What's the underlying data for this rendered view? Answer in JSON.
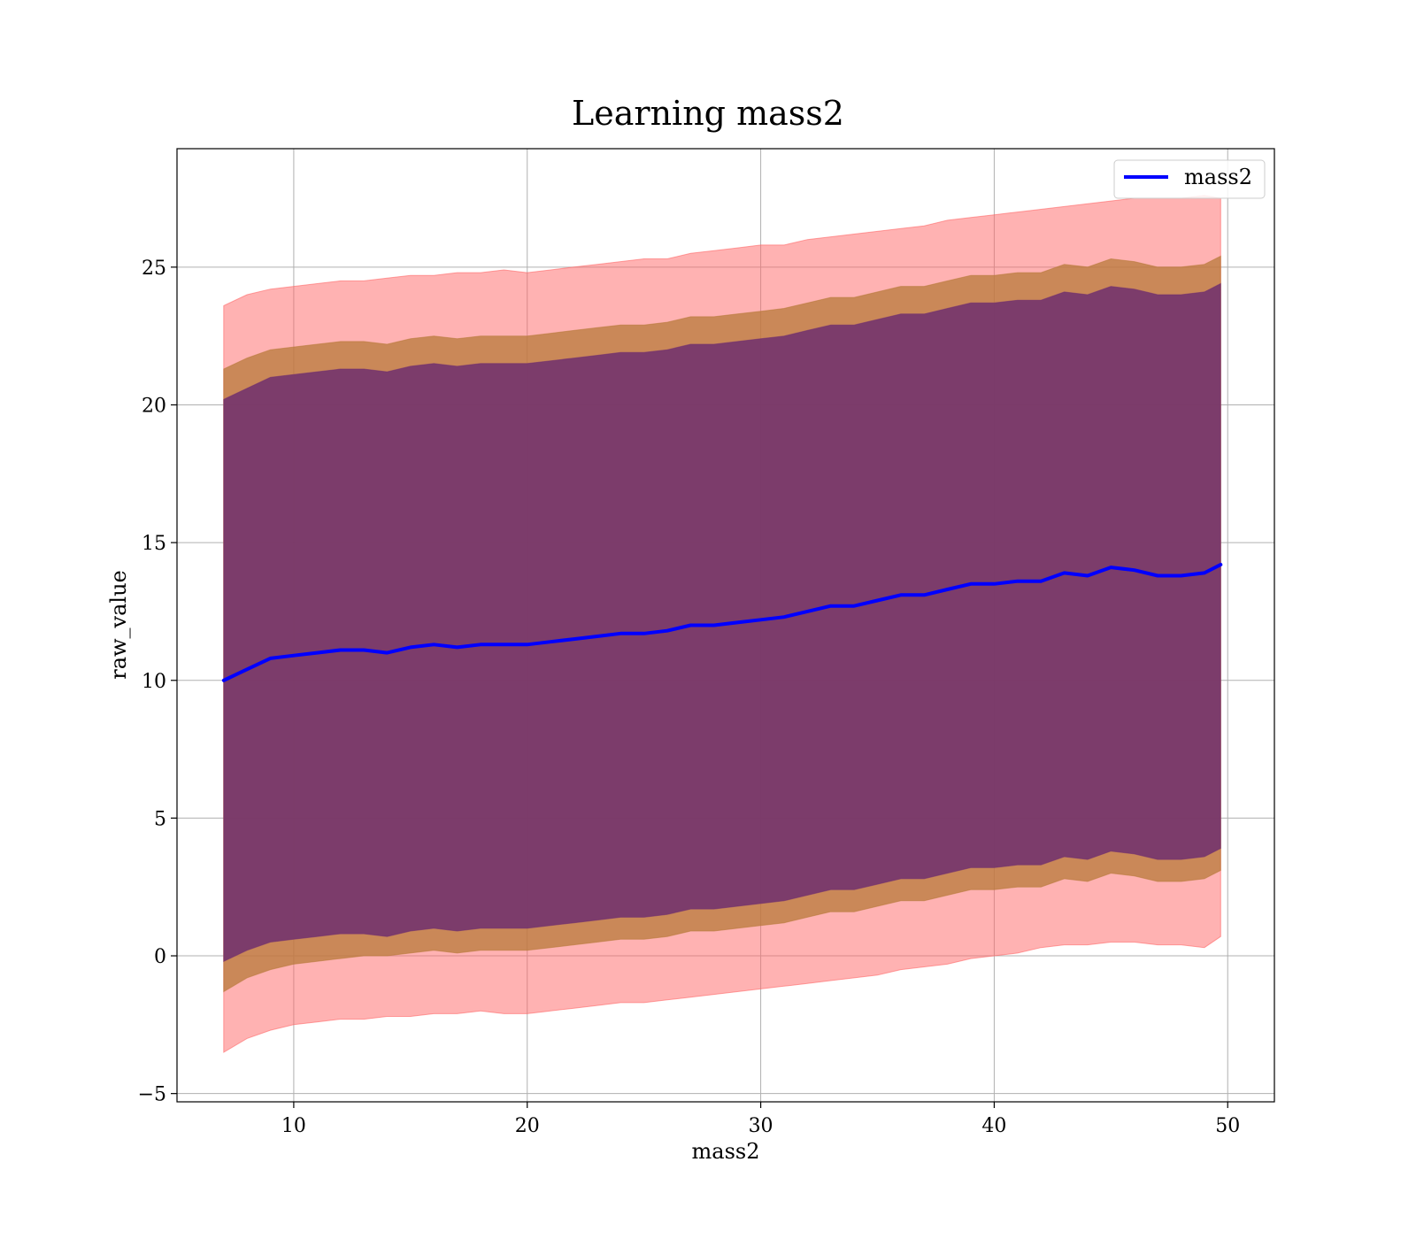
{
  "chart_data": {
    "type": "line",
    "title": "Learning mass2",
    "xlabel": "mass2",
    "ylabel": "raw_value",
    "xlim": [
      5,
      52
    ],
    "ylim": [
      -5.3,
      29.3
    ],
    "xticks": [
      10,
      20,
      30,
      40,
      50
    ],
    "yticks": [
      -5,
      0,
      5,
      10,
      15,
      20,
      25
    ],
    "xtick_labels": [
      "10",
      "20",
      "30",
      "40",
      "50"
    ],
    "ytick_labels": [
      "−5",
      "0",
      "5",
      "10",
      "15",
      "20",
      "25"
    ],
    "grid": true,
    "legend": {
      "position": "top-right",
      "entries": [
        "mass2"
      ]
    },
    "colors": {
      "line": "#0000ff",
      "band_outer": "#ff6666",
      "band_middle": "#b8793a",
      "band_inner": "#6f2f6f",
      "grid": "#b0b0b0"
    },
    "x": [
      7,
      8,
      9,
      10,
      11,
      12,
      13,
      14,
      15,
      16,
      17,
      18,
      19,
      20,
      21,
      22,
      23,
      24,
      25,
      26,
      27,
      28,
      29,
      30,
      31,
      32,
      33,
      34,
      35,
      36,
      37,
      38,
      39,
      40,
      41,
      42,
      43,
      44,
      45,
      46,
      47,
      48,
      49,
      49.7
    ],
    "series": [
      {
        "name": "mass2",
        "values": [
          10.0,
          10.4,
          10.8,
          10.9,
          11.0,
          11.1,
          11.1,
          11.0,
          11.2,
          11.3,
          11.2,
          11.3,
          11.3,
          11.3,
          11.4,
          11.5,
          11.6,
          11.7,
          11.7,
          11.8,
          12.0,
          12.0,
          12.1,
          12.2,
          12.3,
          12.5,
          12.7,
          12.7,
          12.9,
          13.1,
          13.1,
          13.3,
          13.5,
          13.5,
          13.6,
          13.6,
          13.9,
          13.8,
          14.1,
          14.0,
          13.8,
          13.8,
          13.9,
          14.2
        ]
      }
    ],
    "bands": [
      {
        "lower": [
          -3.5,
          -3.0,
          -2.7,
          -2.5,
          -2.4,
          -2.3,
          -2.3,
          -2.2,
          -2.2,
          -2.1,
          -2.1,
          -2.0,
          -2.1,
          -2.1,
          -2.0,
          -1.9,
          -1.8,
          -1.7,
          -1.7,
          -1.6,
          -1.5,
          -1.4,
          -1.3,
          -1.2,
          -1.1,
          -1.0,
          -0.9,
          -0.8,
          -0.7,
          -0.5,
          -0.4,
          -0.3,
          -0.1,
          0.0,
          0.1,
          0.3,
          0.4,
          0.4,
          0.5,
          0.5,
          0.4,
          0.4,
          0.3,
          0.7
        ],
        "upper": [
          23.6,
          24.0,
          24.2,
          24.3,
          24.4,
          24.5,
          24.5,
          24.6,
          24.7,
          24.7,
          24.8,
          24.8,
          24.9,
          24.8,
          24.9,
          25.0,
          25.1,
          25.2,
          25.3,
          25.3,
          25.5,
          25.6,
          25.7,
          25.8,
          25.8,
          26.0,
          26.1,
          26.2,
          26.3,
          26.4,
          26.5,
          26.7,
          26.8,
          26.9,
          27.0,
          27.1,
          27.2,
          27.3,
          27.4,
          27.5,
          27.5,
          27.5,
          27.6,
          27.5
        ]
      },
      {
        "lower": [
          -1.3,
          -0.8,
          -0.5,
          -0.3,
          -0.2,
          -0.1,
          0.0,
          0.0,
          0.1,
          0.2,
          0.1,
          0.2,
          0.2,
          0.2,
          0.3,
          0.4,
          0.5,
          0.6,
          0.6,
          0.7,
          0.9,
          0.9,
          1.0,
          1.1,
          1.2,
          1.4,
          1.6,
          1.6,
          1.8,
          2.0,
          2.0,
          2.2,
          2.4,
          2.4,
          2.5,
          2.5,
          2.8,
          2.7,
          3.0,
          2.9,
          2.7,
          2.7,
          2.8,
          3.1
        ],
        "upper": [
          21.3,
          21.7,
          22.0,
          22.1,
          22.2,
          22.3,
          22.3,
          22.2,
          22.4,
          22.5,
          22.4,
          22.5,
          22.5,
          22.5,
          22.6,
          22.7,
          22.8,
          22.9,
          22.9,
          23.0,
          23.2,
          23.2,
          23.3,
          23.4,
          23.5,
          23.7,
          23.9,
          23.9,
          24.1,
          24.3,
          24.3,
          24.5,
          24.7,
          24.7,
          24.8,
          24.8,
          25.1,
          25.0,
          25.3,
          25.2,
          25.0,
          25.0,
          25.1,
          25.4
        ]
      },
      {
        "lower": [
          -0.2,
          0.2,
          0.5,
          0.6,
          0.7,
          0.8,
          0.8,
          0.7,
          0.9,
          1.0,
          0.9,
          1.0,
          1.0,
          1.0,
          1.1,
          1.2,
          1.3,
          1.4,
          1.4,
          1.5,
          1.7,
          1.7,
          1.8,
          1.9,
          2.0,
          2.2,
          2.4,
          2.4,
          2.6,
          2.8,
          2.8,
          3.0,
          3.2,
          3.2,
          3.3,
          3.3,
          3.6,
          3.5,
          3.8,
          3.7,
          3.5,
          3.5,
          3.6,
          3.9
        ],
        "upper": [
          20.2,
          20.6,
          21.0,
          21.1,
          21.2,
          21.3,
          21.3,
          21.2,
          21.4,
          21.5,
          21.4,
          21.5,
          21.5,
          21.5,
          21.6,
          21.7,
          21.8,
          21.9,
          21.9,
          22.0,
          22.2,
          22.2,
          22.3,
          22.4,
          22.5,
          22.7,
          22.9,
          22.9,
          23.1,
          23.3,
          23.3,
          23.5,
          23.7,
          23.7,
          23.8,
          23.8,
          24.1,
          24.0,
          24.3,
          24.2,
          24.0,
          24.0,
          24.1,
          24.4
        ]
      }
    ]
  }
}
